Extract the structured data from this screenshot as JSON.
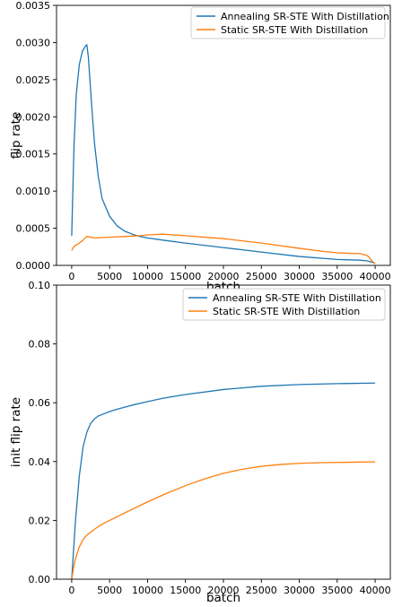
{
  "chart_data": [
    {
      "type": "line",
      "title": "",
      "xlabel": "batch",
      "ylabel": "flip rate",
      "xlim": [
        -2000,
        42000
      ],
      "ylim": [
        0,
        0.0035
      ],
      "xticks": [
        0,
        5000,
        10000,
        15000,
        20000,
        25000,
        30000,
        35000,
        40000
      ],
      "yticks": [
        0,
        0.0005,
        0.001,
        0.0015,
        0.002,
        0.0025,
        0.003,
        0.0035
      ],
      "xtick_labels": [
        "0",
        "5000",
        "10000",
        "15000",
        "20000",
        "25000",
        "30000",
        "35000",
        "40000"
      ],
      "ytick_labels": [
        "0.0000",
        "0.0005",
        "0.0010",
        "0.0015",
        "0.0020",
        "0.0025",
        "0.0030",
        "0.0035"
      ],
      "grid": false,
      "legend_position": "top-right",
      "series": [
        {
          "name": "Annealing SR-STE With Distillation",
          "color": "#1f77b4",
          "x": [
            0,
            100,
            300,
            600,
            1000,
            1400,
            1800,
            2000,
            2200,
            2600,
            3000,
            3500,
            4000,
            5000,
            6000,
            7000,
            8000,
            9000,
            10000,
            12000,
            15000,
            20000,
            25000,
            30000,
            35000,
            38000,
            39000,
            40000
          ],
          "y": [
            0.0004,
            0.0008,
            0.0016,
            0.0023,
            0.0027,
            0.00288,
            0.00295,
            0.00297,
            0.0028,
            0.0022,
            0.00165,
            0.0012,
            0.0009,
            0.00066,
            0.00053,
            0.00046,
            0.00042,
            0.00039,
            0.00037,
            0.00034,
            0.0003,
            0.00024,
            0.00018,
            0.00012,
            8e-05,
            7e-05,
            6e-05,
            3e-05
          ]
        },
        {
          "name": "Static SR-STE With Distillation",
          "color": "#ff7f0e",
          "x": [
            0,
            200,
            500,
            1000,
            1500,
            2000,
            3000,
            5000,
            7000,
            9000,
            10000,
            12000,
            15000,
            20000,
            25000,
            30000,
            33000,
            35000,
            37000,
            38000,
            39000,
            39500,
            40000
          ],
          "y": [
            0.0002,
            0.00024,
            0.00027,
            0.0003,
            0.00034,
            0.00039,
            0.00037,
            0.00038,
            0.00039,
            0.0004,
            0.00041,
            0.00042,
            0.0004,
            0.00036,
            0.0003,
            0.00023,
            0.00019,
            0.00017,
            0.00016,
            0.00016,
            0.00013,
            7e-05,
            2e-05
          ]
        }
      ]
    },
    {
      "type": "line",
      "title": "",
      "xlabel": "batch",
      "ylabel": "init flip rate",
      "xlim": [
        -2000,
        42000
      ],
      "ylim": [
        0,
        0.1
      ],
      "xticks": [
        0,
        5000,
        10000,
        15000,
        20000,
        25000,
        30000,
        35000,
        40000
      ],
      "yticks": [
        0,
        0.02,
        0.04,
        0.06,
        0.08,
        0.1
      ],
      "xtick_labels": [
        "0",
        "5000",
        "10000",
        "15000",
        "20000",
        "25000",
        "30000",
        "35000",
        "40000"
      ],
      "ytick_labels": [
        "0.00",
        "0.02",
        "0.04",
        "0.06",
        "0.08",
        "0.10"
      ],
      "grid": false,
      "legend_position": "top-right",
      "series": [
        {
          "name": "Annealing SR-STE With Distillation",
          "color": "#1f77b4",
          "x": [
            0,
            500,
            1000,
            1500,
            2000,
            2500,
            3000,
            3500,
            4000,
            5000,
            6000,
            8000,
            10000,
            12000,
            15000,
            20000,
            25000,
            30000,
            35000,
            40000
          ],
          "y": [
            0,
            0.02,
            0.035,
            0.045,
            0.05,
            0.053,
            0.0545,
            0.0555,
            0.056,
            0.057,
            0.0578,
            0.0592,
            0.0604,
            0.0615,
            0.0628,
            0.0645,
            0.0656,
            0.0662,
            0.0665,
            0.0667
          ]
        },
        {
          "name": "Static SR-STE With Distillation",
          "color": "#ff7f0e",
          "x": [
            0,
            250,
            500,
            1000,
            1500,
            2000,
            3000,
            4000,
            5000,
            7500,
            10000,
            12500,
            15000,
            17500,
            20000,
            22500,
            25000,
            27500,
            30000,
            32500,
            35000,
            37500,
            40000
          ],
          "y": [
            0,
            0.004,
            0.007,
            0.011,
            0.0135,
            0.015,
            0.017,
            0.0187,
            0.02,
            0.0232,
            0.0263,
            0.0292,
            0.0318,
            0.0341,
            0.036,
            0.0374,
            0.0384,
            0.039,
            0.0394,
            0.0396,
            0.0397,
            0.0398,
            0.0399
          ]
        }
      ]
    }
  ]
}
